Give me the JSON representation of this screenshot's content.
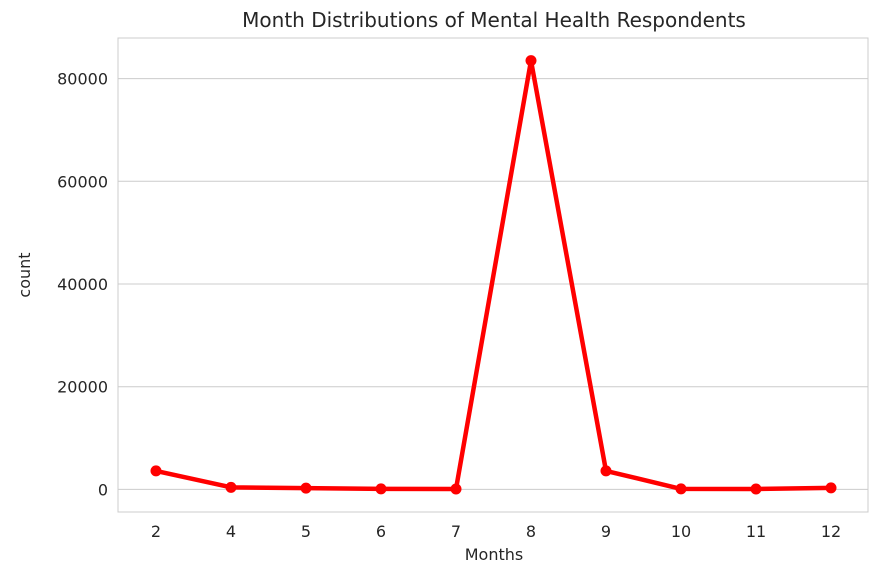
{
  "chart_data": {
    "type": "line",
    "title": "Month Distributions of Mental Health Respondents",
    "xlabel": "Months",
    "ylabel": "count",
    "categories": [
      "2",
      "4",
      "5",
      "6",
      "7",
      "8",
      "9",
      "10",
      "11",
      "12"
    ],
    "series": [
      {
        "values": [
          3600,
          400,
          250,
          100,
          80,
          83500,
          3600,
          100,
          80,
          300
        ],
        "color": "#ff0000",
        "marker": "circle"
      }
    ],
    "yticks": [
      "0",
      "20000",
      "40000",
      "60000",
      "80000"
    ],
    "ylim": [
      -4400,
      87900
    ],
    "grid": "y-only",
    "legend": "none"
  }
}
